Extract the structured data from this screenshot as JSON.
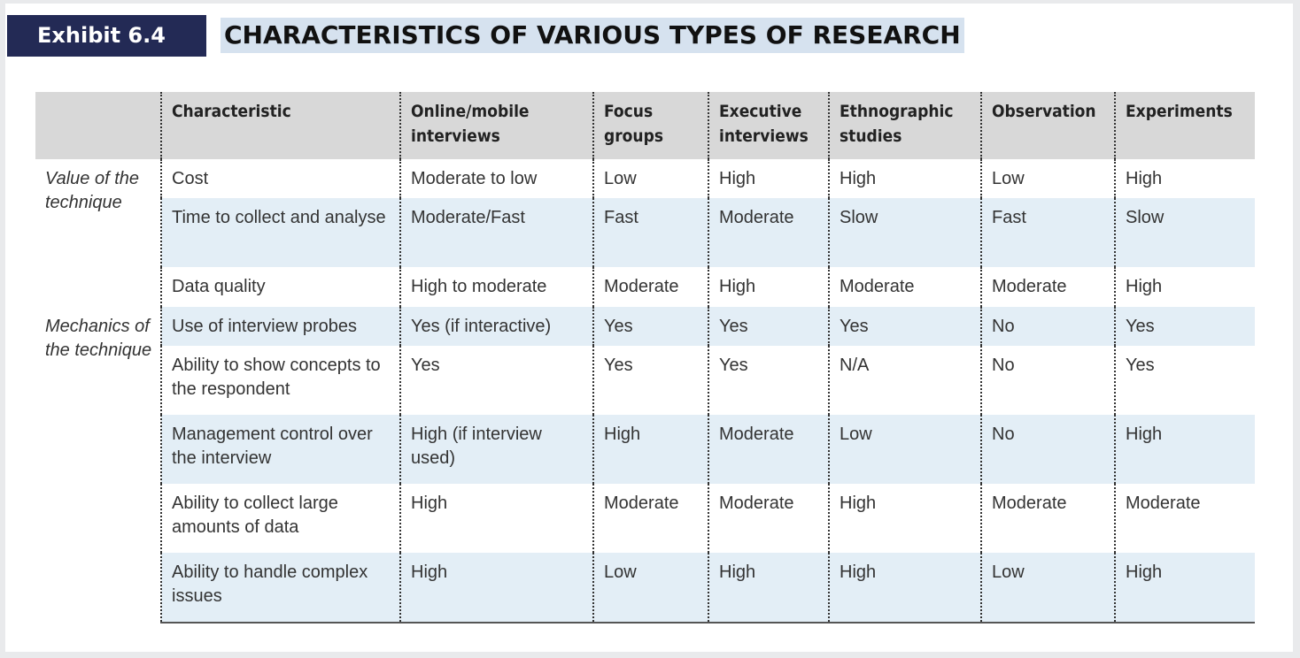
{
  "exhibit": {
    "label": "Exhibit 6.4",
    "title": "CHARACTERISTICS OF VARIOUS TYPES OF RESEARCH"
  },
  "table": {
    "headers": [
      "",
      "Characteristic",
      "Online/mobile interviews",
      "Focus groups",
      "Executive interviews",
      "Ethnographic studies",
      "Observation",
      "Experiments"
    ],
    "groups": {
      "value": "Value of the technique",
      "mechanics": "Mechanics of the technique"
    },
    "rows": [
      [
        "Cost",
        "Moderate to low",
        "Low",
        "High",
        "High",
        "Low",
        "High"
      ],
      [
        "Time to collect and analyse",
        "Moderate/Fast",
        "Fast",
        "Moderate",
        "Slow",
        "Fast",
        "Slow"
      ],
      [
        "Data quality",
        "High to moderate",
        "Moderate",
        "High",
        "Moderate",
        "Moderate",
        "High"
      ],
      [
        "Use of interview probes",
        "Yes (if interactive)",
        "Yes",
        "Yes",
        "Yes",
        "No",
        "Yes"
      ],
      [
        "Ability to show concepts to the respondent",
        "Yes",
        "Yes",
        "Yes",
        "N/A",
        "No",
        "Yes"
      ],
      [
        "Management control over the interview",
        "High (if interview used)",
        "High",
        "Moderate",
        "Low",
        "No",
        "High"
      ],
      [
        "Ability to collect large amounts of data",
        "High",
        "Moderate",
        "Moderate",
        "High",
        "Moderate",
        "Moderate"
      ],
      [
        "Ability to handle complex issues",
        "High",
        "Low",
        "High",
        "High",
        "Low",
        "High"
      ]
    ]
  },
  "colors": {
    "label_bg": "#232a55",
    "title_highlight": "#d6e2ef",
    "header_bg": "#d8d8d8",
    "row_shade": "#e3eef6"
  }
}
